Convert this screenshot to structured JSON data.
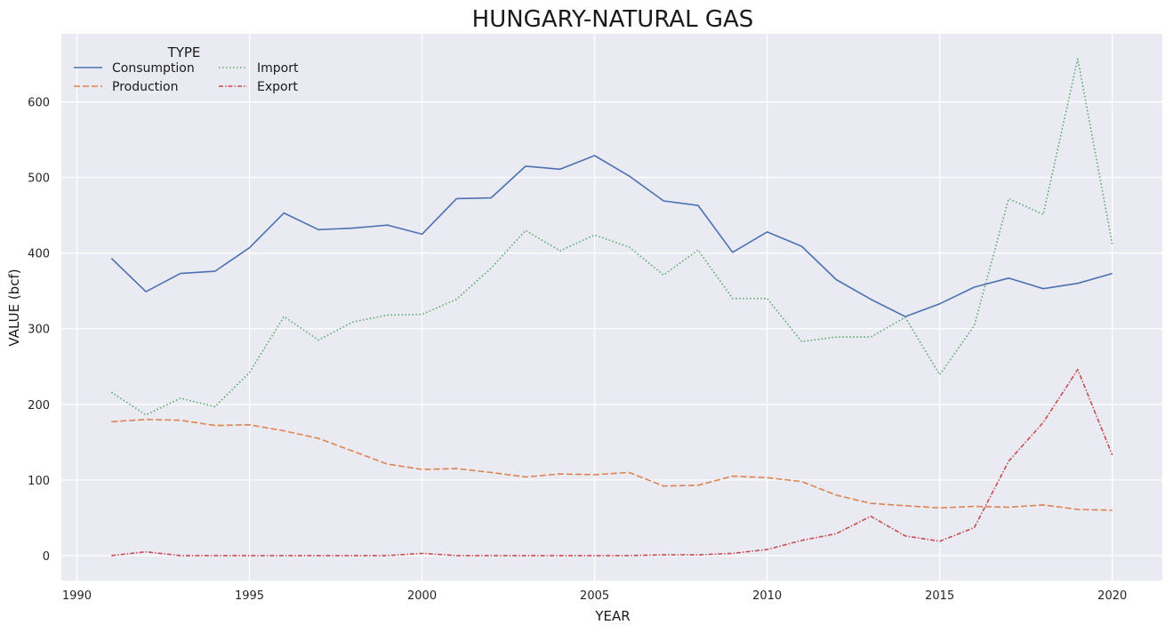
{
  "chart_data": {
    "type": "line",
    "title": "HUNGARY-NATURAL GAS",
    "xlabel": "YEAR",
    "ylabel": "VALUE (bcf)",
    "xlim": [
      1989.55,
      2021.45
    ],
    "ylim": [
      -33,
      690
    ],
    "xticks": [
      1990,
      1995,
      2000,
      2005,
      2010,
      2015,
      2020
    ],
    "yticks": [
      0,
      100,
      200,
      300,
      400,
      500,
      600
    ],
    "grid": true,
    "background": "#eaeaf2",
    "legend": {
      "title": "TYPE",
      "position": "top-left",
      "columns": 2
    },
    "x": [
      1991,
      1992,
      1993,
      1994,
      1995,
      1996,
      1997,
      1998,
      1999,
      2000,
      2001,
      2002,
      2003,
      2004,
      2005,
      2006,
      2007,
      2008,
      2009,
      2010,
      2011,
      2012,
      2013,
      2014,
      2015,
      2016,
      2017,
      2018,
      2019,
      2020
    ],
    "series": [
      {
        "name": "Consumption",
        "color": "#4c72b0",
        "dash": "solid",
        "values": [
          393,
          349,
          373,
          376,
          407,
          453,
          431,
          433,
          437,
          425,
          472,
          473,
          515,
          511,
          529,
          502,
          469,
          463,
          401,
          428,
          409,
          365,
          339,
          316,
          333,
          355,
          367,
          353,
          360,
          373
        ]
      },
      {
        "name": "Production",
        "color": "#dd8452",
        "dash": "dashed",
        "values": [
          177,
          180,
          179,
          172,
          173,
          165,
          155,
          138,
          121,
          114,
          115,
          110,
          104,
          108,
          107,
          110,
          92,
          93,
          105,
          103,
          98,
          80,
          69,
          66,
          63,
          65,
          64,
          67,
          61,
          60
        ]
      },
      {
        "name": "Import",
        "color": "#55a868",
        "dash": "dotted",
        "values": [
          216,
          186,
          208,
          197,
          242,
          316,
          285,
          309,
          318,
          319,
          339,
          380,
          430,
          403,
          424,
          408,
          371,
          404,
          340,
          340,
          283,
          289,
          289,
          315,
          239,
          304,
          472,
          451,
          657,
          412
        ]
      },
      {
        "name": "Export",
        "color": "#c44e52",
        "dash": "dashdot",
        "values": [
          0,
          5,
          0,
          0,
          0,
          0,
          0,
          0,
          0,
          3,
          0,
          0,
          0,
          0,
          0,
          0,
          1,
          1,
          3,
          8,
          20,
          29,
          52,
          26,
          19,
          37,
          125,
          176,
          246,
          133
        ]
      }
    ]
  }
}
